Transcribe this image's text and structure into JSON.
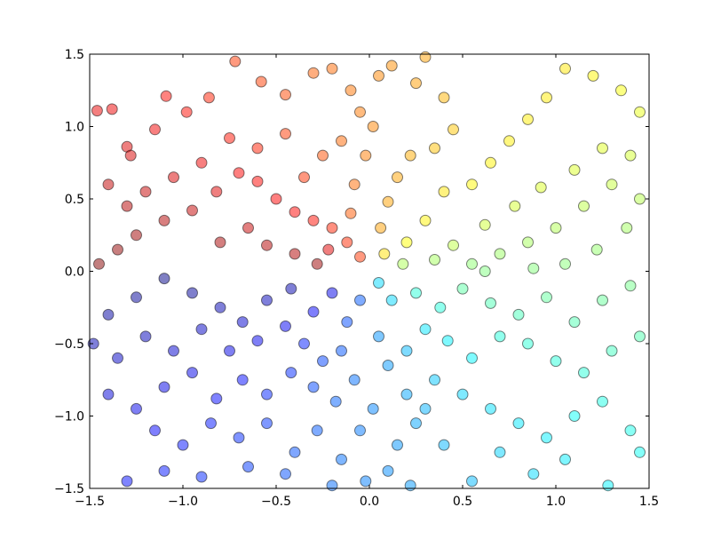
{
  "chart_data": {
    "type": "scatter",
    "title": "",
    "xlabel": "",
    "ylabel": "",
    "xlim": [
      -1.5,
      1.5
    ],
    "ylim": [
      -1.5,
      1.5
    ],
    "grid": false,
    "legend": "none",
    "x_ticks": [
      "−1.5",
      "−1.0",
      "−0.5",
      "0.0",
      "0.5",
      "1.0",
      "1.5"
    ],
    "y_ticks": [
      "1.5",
      "1.0",
      "0.5",
      "0.0",
      "−0.5",
      "−1.0",
      "−1.5"
    ],
    "x_tick_values": [
      -1.5,
      -1.0,
      -0.5,
      0.0,
      0.5,
      1.0,
      1.5
    ],
    "y_tick_values": [
      1.5,
      1.0,
      0.5,
      0.0,
      -0.5,
      -1.0,
      -1.5
    ],
    "marker_alpha": 0.5,
    "marker_edge_color": "#000000",
    "colormap": "jet (color determined by angle atan2(y, x))",
    "points": [
      [
        -1.46,
        1.11
      ],
      [
        -1.38,
        1.12
      ],
      [
        -1.3,
        0.86
      ],
      [
        -1.28,
        0.8
      ],
      [
        -1.15,
        0.98
      ],
      [
        -1.09,
        1.21
      ],
      [
        -0.98,
        1.1
      ],
      [
        -0.86,
        1.2
      ],
      [
        -0.72,
        1.45
      ],
      [
        -0.58,
        1.31
      ],
      [
        -0.45,
        1.22
      ],
      [
        -0.3,
        1.37
      ],
      [
        -0.2,
        1.4
      ],
      [
        -0.1,
        1.25
      ],
      [
        -0.05,
        1.1
      ],
      [
        -1.4,
        0.6
      ],
      [
        -1.3,
        0.45
      ],
      [
        -1.2,
        0.55
      ],
      [
        -1.1,
        0.35
      ],
      [
        -0.95,
        0.42
      ],
      [
        -0.82,
        0.55
      ],
      [
        -0.7,
        0.68
      ],
      [
        -0.6,
        0.62
      ],
      [
        -0.5,
        0.5
      ],
      [
        -0.4,
        0.41
      ],
      [
        -0.3,
        0.35
      ],
      [
        -0.2,
        0.3
      ],
      [
        -0.12,
        0.2
      ],
      [
        -0.05,
        0.1
      ],
      [
        -0.35,
        0.65
      ],
      [
        -0.25,
        0.8
      ],
      [
        -0.15,
        0.9
      ],
      [
        -0.45,
        0.95
      ],
      [
        -0.6,
        0.85
      ],
      [
        -0.75,
        0.92
      ],
      [
        -0.9,
        0.75
      ],
      [
        -1.05,
        0.65
      ],
      [
        -1.25,
        0.25
      ],
      [
        -1.35,
        0.15
      ],
      [
        -1.45,
        0.05
      ],
      [
        -0.8,
        0.2
      ],
      [
        -0.65,
        0.3
      ],
      [
        -0.55,
        0.18
      ],
      [
        -0.4,
        0.12
      ],
      [
        -0.28,
        0.05
      ],
      [
        -0.22,
        0.15
      ],
      [
        -0.1,
        0.4
      ],
      [
        -0.08,
        0.6
      ],
      [
        -0.02,
        0.8
      ],
      [
        0.02,
        1.0
      ],
      [
        0.05,
        1.35
      ],
      [
        0.12,
        1.42
      ],
      [
        0.25,
        1.3
      ],
      [
        0.3,
        1.48
      ],
      [
        0.4,
        1.2
      ],
      [
        0.45,
        0.98
      ],
      [
        0.35,
        0.85
      ],
      [
        0.22,
        0.8
      ],
      [
        0.15,
        0.65
      ],
      [
        0.1,
        0.48
      ],
      [
        0.06,
        0.3
      ],
      [
        0.08,
        0.12
      ],
      [
        0.2,
        0.2
      ],
      [
        0.3,
        0.35
      ],
      [
        0.4,
        0.55
      ],
      [
        0.55,
        0.6
      ],
      [
        0.65,
        0.75
      ],
      [
        0.75,
        0.9
      ],
      [
        0.85,
        1.05
      ],
      [
        0.95,
        1.2
      ],
      [
        1.05,
        1.4
      ],
      [
        1.2,
        1.35
      ],
      [
        1.35,
        1.25
      ],
      [
        1.45,
        1.1
      ],
      [
        1.4,
        0.8
      ],
      [
        1.3,
        0.6
      ],
      [
        1.15,
        0.45
      ],
      [
        1.0,
        0.3
      ],
      [
        0.85,
        0.2
      ],
      [
        0.7,
        0.12
      ],
      [
        0.55,
        0.05
      ],
      [
        0.45,
        0.18
      ],
      [
        0.62,
        0.32
      ],
      [
        0.78,
        0.45
      ],
      [
        0.92,
        0.58
      ],
      [
        1.1,
        0.7
      ],
      [
        1.25,
        0.85
      ],
      [
        1.45,
        0.5
      ],
      [
        1.38,
        0.3
      ],
      [
        1.22,
        0.15
      ],
      [
        1.05,
        0.05
      ],
      [
        0.88,
        0.02
      ],
      [
        0.62,
        0.0
      ],
      [
        0.35,
        0.08
      ],
      [
        0.18,
        0.05
      ],
      [
        0.05,
        -0.08
      ],
      [
        0.12,
        -0.2
      ],
      [
        0.25,
        -0.15
      ],
      [
        0.38,
        -0.25
      ],
      [
        0.5,
        -0.12
      ],
      [
        0.65,
        -0.22
      ],
      [
        0.8,
        -0.3
      ],
      [
        0.95,
        -0.18
      ],
      [
        1.1,
        -0.35
      ],
      [
        1.25,
        -0.2
      ],
      [
        1.4,
        -0.1
      ],
      [
        1.45,
        -0.45
      ],
      [
        1.3,
        -0.55
      ],
      [
        1.15,
        -0.7
      ],
      [
        1.0,
        -0.62
      ],
      [
        0.85,
        -0.5
      ],
      [
        0.7,
        -0.45
      ],
      [
        0.55,
        -0.6
      ],
      [
        0.42,
        -0.48
      ],
      [
        0.3,
        -0.4
      ],
      [
        0.2,
        -0.55
      ],
      [
        0.35,
        -0.75
      ],
      [
        0.5,
        -0.85
      ],
      [
        0.65,
        -0.95
      ],
      [
        0.8,
        -1.05
      ],
      [
        0.95,
        -1.15
      ],
      [
        1.1,
        -1.0
      ],
      [
        1.25,
        -0.9
      ],
      [
        1.4,
        -1.1
      ],
      [
        1.45,
        -1.25
      ],
      [
        1.28,
        -1.48
      ],
      [
        1.05,
        -1.3
      ],
      [
        0.88,
        -1.4
      ],
      [
        0.7,
        -1.25
      ],
      [
        0.55,
        -1.45
      ],
      [
        0.4,
        -1.2
      ],
      [
        0.25,
        -1.05
      ],
      [
        0.2,
        -0.85
      ],
      [
        0.1,
        -0.65
      ],
      [
        0.05,
        -0.45
      ],
      [
        -0.05,
        -0.2
      ],
      [
        -0.12,
        -0.35
      ],
      [
        -0.2,
        -0.15
      ],
      [
        -0.3,
        -0.28
      ],
      [
        -0.42,
        -0.12
      ],
      [
        -0.55,
        -0.2
      ],
      [
        -0.68,
        -0.35
      ],
      [
        -0.8,
        -0.25
      ],
      [
        -0.95,
        -0.15
      ],
      [
        -1.1,
        -0.05
      ],
      [
        -1.25,
        -0.18
      ],
      [
        -1.4,
        -0.3
      ],
      [
        -1.48,
        -0.5
      ],
      [
        -1.35,
        -0.6
      ],
      [
        -1.2,
        -0.45
      ],
      [
        -1.05,
        -0.55
      ],
      [
        -0.9,
        -0.4
      ],
      [
        -0.75,
        -0.55
      ],
      [
        -0.6,
        -0.48
      ],
      [
        -0.45,
        -0.38
      ],
      [
        -0.35,
        -0.5
      ],
      [
        -0.25,
        -0.62
      ],
      [
        -0.15,
        -0.55
      ],
      [
        -0.08,
        -0.75
      ],
      [
        -0.18,
        -0.9
      ],
      [
        -0.3,
        -0.8
      ],
      [
        -0.42,
        -0.7
      ],
      [
        -0.55,
        -0.85
      ],
      [
        -0.68,
        -0.75
      ],
      [
        -0.82,
        -0.88
      ],
      [
        -0.95,
        -0.7
      ],
      [
        -1.1,
        -0.8
      ],
      [
        -1.25,
        -0.95
      ],
      [
        -1.4,
        -0.85
      ],
      [
        -1.15,
        -1.1
      ],
      [
        -1.0,
        -1.2
      ],
      [
        -0.85,
        -1.05
      ],
      [
        -0.7,
        -1.15
      ],
      [
        -0.55,
        -1.05
      ],
      [
        -0.4,
        -1.25
      ],
      [
        -0.28,
        -1.1
      ],
      [
        -0.15,
        -1.3
      ],
      [
        -0.05,
        -1.1
      ],
      [
        0.02,
        -0.95
      ],
      [
        -0.02,
        -1.45
      ],
      [
        -0.2,
        -1.48
      ],
      [
        -0.45,
        -1.4
      ],
      [
        -0.65,
        -1.35
      ],
      [
        -0.9,
        -1.42
      ],
      [
        -1.1,
        -1.38
      ],
      [
        -1.3,
        -1.45
      ],
      [
        0.1,
        -1.38
      ],
      [
        0.22,
        -1.48
      ],
      [
        0.15,
        -1.2
      ],
      [
        0.3,
        -0.95
      ]
    ]
  }
}
